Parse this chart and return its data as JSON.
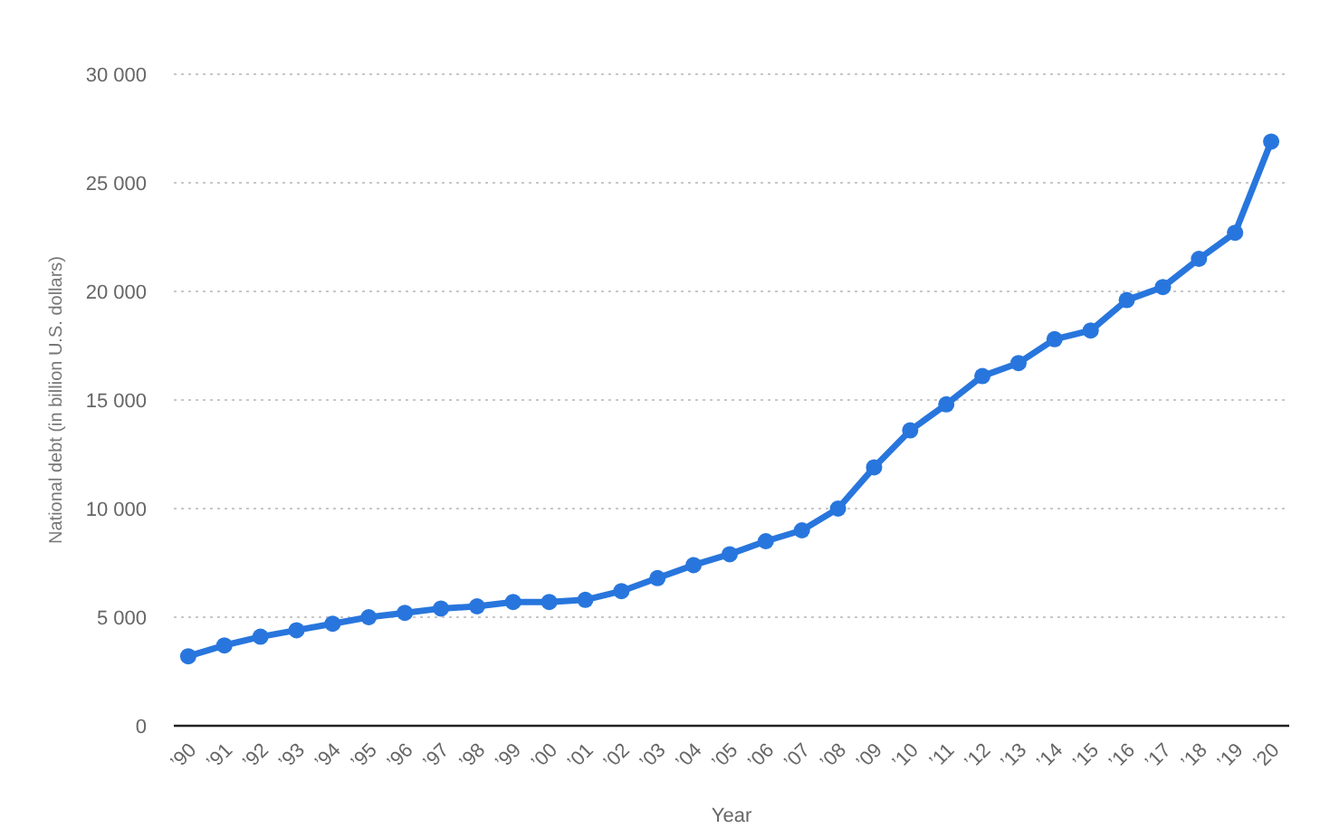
{
  "chart_data": {
    "type": "line",
    "xlabel": "Year",
    "ylabel": "National debt (in billion U.S. dollars)",
    "categories": [
      "’90",
      "’91",
      "’92",
      "’93",
      "’94",
      "’95",
      "’96",
      "’97",
      "’98",
      "’99",
      "’00",
      "’01",
      "’02",
      "’03",
      "’04",
      "’05",
      "’06",
      "’07",
      "’08",
      "’09",
      "’10",
      "’11",
      "’12",
      "’13",
      "’14",
      "’15",
      "’16",
      "’17",
      "’18",
      "’19",
      "’20"
    ],
    "values": [
      3200,
      3700,
      4100,
      4400,
      4700,
      5000,
      5200,
      5400,
      5500,
      5700,
      5700,
      5800,
      6200,
      6800,
      7400,
      7900,
      8500,
      9000,
      10000,
      11900,
      13600,
      14800,
      16100,
      16700,
      17800,
      18200,
      19600,
      20200,
      21500,
      22700,
      26900
    ],
    "color": "#2876dd",
    "ylim": [
      0,
      30000
    ],
    "yticks": [
      0,
      {
        "value": 5000,
        "label": "5 000"
      },
      {
        "value": 10000,
        "label": "10 000"
      },
      {
        "value": 15000,
        "label": "15 000"
      },
      {
        "value": 20000,
        "label": "20 000"
      },
      {
        "value": 25000,
        "label": "25 000"
      },
      {
        "value": 30000,
        "label": "30 000"
      }
    ],
    "grid": "y",
    "marker": "circle",
    "line_style": "solid"
  }
}
